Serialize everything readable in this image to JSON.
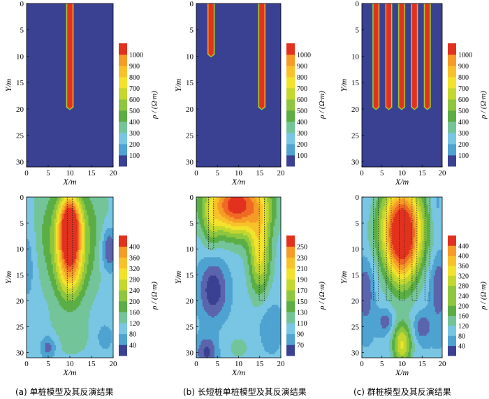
{
  "captions": [
    "(a) 单桩模型及其反演结果",
    "(b) 长短桩单桩模型及其反演结果",
    "(c) 群桩模型及其反演结果"
  ],
  "chart_data": [
    {
      "type": "heatmap",
      "panel": "a-model",
      "xlabel": "X/m",
      "ylabel": "Y/m",
      "xlim": [
        0,
        20
      ],
      "ylim": [
        0,
        31
      ],
      "xticks": [
        0,
        5,
        10,
        15,
        20
      ],
      "yticks": [
        0,
        5,
        10,
        15,
        20,
        25,
        30
      ],
      "colorbar_label": "ρ / (Ω·m)",
      "colorbar_ticks": [
        100,
        200,
        300,
        400,
        500,
        600,
        700,
        800,
        900,
        1000
      ],
      "background_value": 50,
      "piles": [
        {
          "x": 10,
          "width": 1.2,
          "top": 0,
          "bottom": 20,
          "value": 1050
        }
      ]
    },
    {
      "type": "heatmap",
      "panel": "b-model",
      "xlabel": "X/m",
      "ylabel": "Y/m",
      "xlim": [
        0,
        20
      ],
      "ylim": [
        0,
        31
      ],
      "xticks": [
        0,
        5,
        10,
        15,
        20
      ],
      "yticks": [
        0,
        5,
        10,
        15,
        20,
        25,
        30
      ],
      "colorbar_label": "ρ / (Ω·m)",
      "colorbar_ticks": [
        100,
        200,
        300,
        400,
        500,
        600,
        700,
        800,
        900,
        1000
      ],
      "background_value": 50,
      "piles": [
        {
          "x": 3.5,
          "width": 1.2,
          "top": 0,
          "bottom": 10,
          "value": 1050
        },
        {
          "x": 15.5,
          "width": 1.2,
          "top": 0,
          "bottom": 20,
          "value": 1050
        }
      ]
    },
    {
      "type": "heatmap",
      "panel": "c-model",
      "xlabel": "X/m",
      "ylabel": "Y/m",
      "xlim": [
        0,
        20
      ],
      "ylim": [
        0,
        31
      ],
      "xticks": [
        0,
        5,
        10,
        15,
        20
      ],
      "yticks": [
        0,
        5,
        10,
        15,
        20,
        25,
        30
      ],
      "colorbar_label": "ρ / (Ω·m)",
      "colorbar_ticks": [
        100,
        200,
        300,
        400,
        500,
        600,
        700,
        800,
        900,
        1000
      ],
      "background_value": 50,
      "piles": [
        {
          "x": 3.5,
          "width": 1.2,
          "top": 0,
          "bottom": 20,
          "value": 1050
        },
        {
          "x": 6.7,
          "width": 1.2,
          "top": 0,
          "bottom": 20,
          "value": 1050
        },
        {
          "x": 9.9,
          "width": 1.2,
          "top": 0,
          "bottom": 20,
          "value": 1050
        },
        {
          "x": 13.1,
          "width": 1.2,
          "top": 0,
          "bottom": 20,
          "value": 1050
        },
        {
          "x": 16.3,
          "width": 1.2,
          "top": 0,
          "bottom": 20,
          "value": 1050
        }
      ]
    },
    {
      "type": "heatmap",
      "panel": "a-inversion",
      "xlabel": "X/m",
      "ylabel": "Y/m",
      "xlim": [
        0,
        20
      ],
      "ylim": [
        0,
        31
      ],
      "xticks": [
        0,
        5,
        10,
        15,
        20
      ],
      "yticks": [
        0,
        5,
        10,
        15,
        20,
        25,
        30
      ],
      "colorbar_label": "ρ / (Ω·m)",
      "colorbar_ticks": [
        40,
        80,
        120,
        160,
        200,
        240,
        280,
        320,
        360,
        400
      ],
      "value_range": [
        20,
        420
      ],
      "pile_outlines": [
        {
          "x": 10,
          "width": 1.2,
          "top": 0,
          "bottom": 20
        }
      ],
      "field": {
        "base": 130,
        "blobs": [
          {
            "x": 10,
            "y": 6,
            "sx": 1.6,
            "sy": 4.0,
            "amp": 300
          },
          {
            "x": 10,
            "y": 14,
            "sx": 2.2,
            "sy": 4.5,
            "amp": 140
          },
          {
            "x": 10,
            "y": 7,
            "sx": 5.0,
            "sy": 7.0,
            "amp": 100
          },
          {
            "x": 19,
            "y": 10,
            "sx": 1.3,
            "sy": 3.0,
            "amp": -95
          },
          {
            "x": 0.5,
            "y": 12,
            "sx": 1.3,
            "sy": 6.0,
            "amp": -40
          },
          {
            "x": 5,
            "y": 29,
            "sx": 1.3,
            "sy": 1.6,
            "amp": -70
          },
          {
            "x": 18,
            "y": 27,
            "sx": 1.5,
            "sy": 2.0,
            "amp": -40
          },
          {
            "x": 10,
            "y": 27,
            "sx": 4.5,
            "sy": 3.5,
            "amp": 20
          }
        ]
      }
    },
    {
      "type": "heatmap",
      "panel": "b-inversion",
      "xlabel": "X/m",
      "ylabel": "Y/m",
      "xlim": [
        0,
        20
      ],
      "ylim": [
        0,
        31
      ],
      "xticks": [
        0,
        5,
        10,
        15,
        20
      ],
      "yticks": [
        0,
        5,
        10,
        15,
        20,
        25,
        30
      ],
      "colorbar_label": "ρ / (Ω·m)",
      "colorbar_ticks": [
        70,
        90,
        110,
        130,
        150,
        170,
        190,
        210,
        230,
        250
      ],
      "value_range": [
        60,
        260
      ],
      "pile_outlines": [
        {
          "x": 3.5,
          "width": 1.2,
          "top": 0,
          "bottom": 10
        },
        {
          "x": 15.5,
          "width": 1.2,
          "top": 0,
          "bottom": 20
        }
      ],
      "field": {
        "base": 112,
        "blobs": [
          {
            "x": 9.5,
            "y": 1.5,
            "sx": 5.0,
            "sy": 4.0,
            "amp": 145
          },
          {
            "x": 15,
            "y": 11,
            "sx": 1.8,
            "sy": 5.5,
            "amp": 75
          },
          {
            "x": 3.5,
            "y": 6,
            "sx": 1.3,
            "sy": 3.0,
            "amp": 25
          },
          {
            "x": 4,
            "y": 18,
            "sx": 2.3,
            "sy": 4.0,
            "amp": -48
          },
          {
            "x": 2.5,
            "y": 30,
            "sx": 1.8,
            "sy": 2.2,
            "amp": -40
          },
          {
            "x": 17.5,
            "y": 25,
            "sx": 2.0,
            "sy": 3.5,
            "amp": -20
          },
          {
            "x": 10,
            "y": 29,
            "sx": 3.0,
            "sy": 2.5,
            "amp": 12
          }
        ]
      }
    },
    {
      "type": "heatmap",
      "panel": "c-inversion",
      "xlabel": "X/m",
      "ylabel": "Y/m",
      "xlim": [
        0,
        20
      ],
      "ylim": [
        0,
        31
      ],
      "xticks": [
        0,
        5,
        10,
        15,
        20
      ],
      "yticks": [
        0,
        5,
        10,
        15,
        20,
        25,
        30
      ],
      "colorbar_label": "ρ / (Ω·m)",
      "colorbar_ticks": [
        40,
        80,
        120,
        160,
        200,
        240,
        280,
        320,
        360,
        400,
        440
      ],
      "value_range": [
        25,
        465
      ],
      "pile_outlines": [
        {
          "x": 3.5,
          "width": 1.2,
          "top": 0,
          "bottom": 20
        },
        {
          "x": 6.7,
          "width": 1.2,
          "top": 0,
          "bottom": 20
        },
        {
          "x": 9.9,
          "width": 1.2,
          "top": 0,
          "bottom": 20
        },
        {
          "x": 13.1,
          "width": 1.2,
          "top": 0,
          "bottom": 20
        },
        {
          "x": 16.3,
          "width": 1.2,
          "top": 0,
          "bottom": 20
        }
      ],
      "field": {
        "base": 130,
        "blobs": [
          {
            "x": 10,
            "y": 8,
            "sx": 3.0,
            "sy": 6.5,
            "amp": 300
          },
          {
            "x": 10,
            "y": 5,
            "sx": 6.0,
            "sy": 6.0,
            "amp": 110
          },
          {
            "x": 10,
            "y": 28.5,
            "sx": 1.7,
            "sy": 3.0,
            "amp": 170
          },
          {
            "x": 1,
            "y": 18,
            "sx": 1.4,
            "sy": 4.5,
            "amp": -70
          },
          {
            "x": 19,
            "y": 17,
            "sx": 1.4,
            "sy": 5.0,
            "amp": -70
          },
          {
            "x": 6,
            "y": 24,
            "sx": 1.4,
            "sy": 1.6,
            "amp": -65
          },
          {
            "x": 15,
            "y": 25,
            "sx": 1.5,
            "sy": 1.8,
            "amp": -70
          },
          {
            "x": 18.5,
            "y": 2,
            "sx": 1.3,
            "sy": 3.5,
            "amp": -40
          },
          {
            "x": 1.5,
            "y": 2,
            "sx": 1.3,
            "sy": 3.5,
            "amp": -20
          }
        ]
      }
    }
  ]
}
